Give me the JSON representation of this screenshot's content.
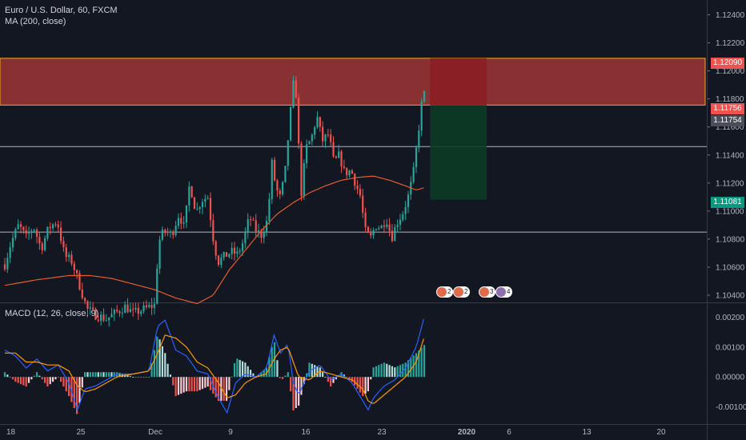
{
  "header": {
    "symbol": "Euro / U.S. Dollar, 60, FXCM",
    "ma_label": "MA (200, close)",
    "macd_label": "MACD (12, 26, close, 9)"
  },
  "price_tags": {
    "zone_top": "1.12090",
    "last_close": "1.11756",
    "crosshair": "1.11754",
    "target": "1.11081"
  },
  "events": [
    {
      "label": "2",
      "color": "#e06a4a"
    },
    {
      "label": "2",
      "color": "#e06a4a"
    },
    {
      "label": "3",
      "color": "#e06a4a"
    },
    {
      "label": "3",
      "color": "#8d6fb2"
    },
    {
      "label": "1",
      "color": "#8d6fb2"
    },
    {
      "label": "4",
      "color": "#8d6fb2"
    }
  ],
  "colors": {
    "background": "#131722",
    "up": "#26a69a",
    "down": "#ef5350",
    "ma": "#e65c2e",
    "macd": "#2962ff",
    "signal": "#ff9800",
    "zone": "#b23a3a",
    "zone_border": "#f5a623",
    "stop": "#8b1d24",
    "profit": "#0c3b26",
    "line": "#b2b5be"
  },
  "chart_data": [
    {
      "type": "candlestick",
      "title": "Euro / U.S. Dollar, 60, FXCM",
      "x_tick_labels": [
        "18",
        "25",
        "Dec",
        "9",
        "16",
        "23",
        "2020",
        "6",
        "13",
        "20"
      ],
      "y_tick_labels": [
        "1.12400",
        "1.12200",
        "1.12000",
        "1.11800",
        "1.11600",
        "1.11400",
        "1.11200",
        "1.11000",
        "1.10800",
        "1.10600",
        "1.10400"
      ],
      "ylim": [
        1.1036,
        1.1246
      ],
      "grid": false,
      "indicator": "MA (200, close)",
      "close_path": [
        {
          "d": 0.0,
          "c": 1.1062
        },
        {
          "d": 0.6,
          "c": 1.1078
        },
        {
          "d": 1.3,
          "c": 1.109
        },
        {
          "d": 2.0,
          "c": 1.1081
        },
        {
          "d": 2.7,
          "c": 1.1089
        },
        {
          "d": 3.4,
          "c": 1.1073
        },
        {
          "d": 4.1,
          "c": 1.1088
        },
        {
          "d": 4.9,
          "c": 1.1093
        },
        {
          "d": 5.6,
          "c": 1.1068
        },
        {
          "d": 6.3,
          "c": 1.1064
        },
        {
          "d": 7.0,
          "c": 1.1047
        },
        {
          "d": 7.7,
          "c": 1.103
        },
        {
          "d": 8.5,
          "c": 1.1026
        },
        {
          "d": 9.5,
          "c": 1.1023
        },
        {
          "d": 10.5,
          "c": 1.1028
        },
        {
          "d": 11.3,
          "c": 1.1032
        },
        {
          "d": 12.0,
          "c": 1.1027
        },
        {
          "d": 13.0,
          "c": 1.103
        },
        {
          "d": 14.0,
          "c": 1.1033
        },
        {
          "d": 14.4,
          "c": 1.1078
        },
        {
          "d": 14.9,
          "c": 1.1086
        },
        {
          "d": 15.6,
          "c": 1.1083
        },
        {
          "d": 16.3,
          "c": 1.1098
        },
        {
          "d": 16.8,
          "c": 1.1088
        },
        {
          "d": 17.3,
          "c": 1.112
        },
        {
          "d": 17.9,
          "c": 1.1099
        },
        {
          "d": 18.4,
          "c": 1.1108
        },
        {
          "d": 19.0,
          "c": 1.111
        },
        {
          "d": 19.6,
          "c": 1.1075
        },
        {
          "d": 20.0,
          "c": 1.1064
        },
        {
          "d": 20.6,
          "c": 1.1068
        },
        {
          "d": 21.2,
          "c": 1.1071
        },
        {
          "d": 21.8,
          "c": 1.1069
        },
        {
          "d": 22.3,
          "c": 1.1078
        },
        {
          "d": 22.9,
          "c": 1.1096
        },
        {
          "d": 23.5,
          "c": 1.1086
        },
        {
          "d": 24.0,
          "c": 1.1083
        },
        {
          "d": 24.6,
          "c": 1.1094
        },
        {
          "d": 25.0,
          "c": 1.1134
        },
        {
          "d": 25.3,
          "c": 1.112
        },
        {
          "d": 25.7,
          "c": 1.1108
        },
        {
          "d": 26.2,
          "c": 1.1125
        },
        {
          "d": 26.6,
          "c": 1.116
        },
        {
          "d": 27.0,
          "c": 1.119
        },
        {
          "d": 27.3,
          "c": 1.1182
        },
        {
          "d": 27.7,
          "c": 1.111
        },
        {
          "d": 28.2,
          "c": 1.1145
        },
        {
          "d": 28.7,
          "c": 1.1152
        },
        {
          "d": 29.2,
          "c": 1.1168
        },
        {
          "d": 29.7,
          "c": 1.115
        },
        {
          "d": 30.3,
          "c": 1.1155
        },
        {
          "d": 30.8,
          "c": 1.1134
        },
        {
          "d": 31.3,
          "c": 1.114
        },
        {
          "d": 31.8,
          "c": 1.1127
        },
        {
          "d": 32.4,
          "c": 1.1129
        },
        {
          "d": 32.9,
          "c": 1.1118
        },
        {
          "d": 33.3,
          "c": 1.111
        },
        {
          "d": 33.7,
          "c": 1.1086
        },
        {
          "d": 34.2,
          "c": 1.108
        },
        {
          "d": 34.7,
          "c": 1.109
        },
        {
          "d": 35.2,
          "c": 1.1088
        },
        {
          "d": 35.7,
          "c": 1.1095
        },
        {
          "d": 36.2,
          "c": 1.1081
        },
        {
          "d": 36.7,
          "c": 1.1092
        },
        {
          "d": 37.2,
          "c": 1.1098
        },
        {
          "d": 37.7,
          "c": 1.1109
        },
        {
          "d": 38.2,
          "c": 1.1125
        },
        {
          "d": 38.6,
          "c": 1.115
        },
        {
          "d": 39.0,
          "c": 1.1176
        },
        {
          "d": 39.2,
          "c": 1.1186
        },
        {
          "d": 39.4,
          "c": 1.1176
        }
      ],
      "ma_path": [
        {
          "d": 0.0,
          "c": 1.1047
        },
        {
          "d": 3.0,
          "c": 1.1051
        },
        {
          "d": 6.0,
          "c": 1.1054
        },
        {
          "d": 8.0,
          "c": 1.1054
        },
        {
          "d": 10.0,
          "c": 1.1052
        },
        {
          "d": 12.0,
          "c": 1.1048
        },
        {
          "d": 14.0,
          "c": 1.1044
        },
        {
          "d": 16.0,
          "c": 1.1038
        },
        {
          "d": 18.0,
          "c": 1.1034
        },
        {
          "d": 19.5,
          "c": 1.104
        },
        {
          "d": 21.0,
          "c": 1.1058
        },
        {
          "d": 22.5,
          "c": 1.1072
        },
        {
          "d": 24.0,
          "c": 1.1086
        },
        {
          "d": 25.5,
          "c": 1.1098
        },
        {
          "d": 27.0,
          "c": 1.1106
        },
        {
          "d": 28.5,
          "c": 1.1113
        },
        {
          "d": 30.0,
          "c": 1.1118
        },
        {
          "d": 31.5,
          "c": 1.1122
        },
        {
          "d": 33.0,
          "c": 1.1124
        },
        {
          "d": 34.5,
          "c": 1.1125
        },
        {
          "d": 36.0,
          "c": 1.1122
        },
        {
          "d": 37.5,
          "c": 1.1118
        },
        {
          "d": 38.5,
          "c": 1.1115
        },
        {
          "d": 39.4,
          "c": 1.1117
        }
      ],
      "levels": [
        {
          "name": "supply-zone",
          "from": 1.11756,
          "to": 1.1209
        },
        {
          "name": "support-line-upper",
          "value": 1.1146
        },
        {
          "name": "support-line-lower",
          "value": 1.1085
        }
      ],
      "position": {
        "entry": 1.11756,
        "stop": 1.1209,
        "target": 1.11081,
        "start_day": 39.8,
        "end_day": 45.1
      }
    },
    {
      "type": "macd",
      "title": "MACD (12, 26, close, 9)",
      "y_tick_labels": [
        "0.00200",
        "0.00100",
        "0.00000",
        "-0.00100"
      ],
      "ylim": [
        -0.00152,
        0.00244
      ],
      "macd_path": [
        {
          "d": 0.0,
          "v": 0.0009
        },
        {
          "d": 1.0,
          "v": 0.0007
        },
        {
          "d": 2.0,
          "v": 0.0003
        },
        {
          "d": 3.0,
          "v": 0.0006
        },
        {
          "d": 4.0,
          "v": 0.0002
        },
        {
          "d": 5.0,
          "v": 0.0004
        },
        {
          "d": 6.0,
          "v": -0.0002
        },
        {
          "d": 6.8,
          "v": -0.0011
        },
        {
          "d": 7.5,
          "v": -0.0004
        },
        {
          "d": 8.5,
          "v": -0.0003
        },
        {
          "d": 9.5,
          "v": -0.0001
        },
        {
          "d": 10.5,
          "v": 0.0001
        },
        {
          "d": 12.0,
          "v": 0.0001
        },
        {
          "d": 13.5,
          "v": 0.0002
        },
        {
          "d": 14.3,
          "v": 0.0017
        },
        {
          "d": 15.0,
          "v": 0.0019
        },
        {
          "d": 16.0,
          "v": 0.0009
        },
        {
          "d": 17.0,
          "v": 0.0007
        },
        {
          "d": 18.0,
          "v": 0.0002
        },
        {
          "d": 19.0,
          "v": 0.0001
        },
        {
          "d": 20.0,
          "v": -0.0007
        },
        {
          "d": 20.8,
          "v": -0.0012
        },
        {
          "d": 21.6,
          "v": -0.0002
        },
        {
          "d": 22.5,
          "v": 0.0001
        },
        {
          "d": 23.5,
          "v": 0.0
        },
        {
          "d": 24.5,
          "v": 0.0003
        },
        {
          "d": 25.2,
          "v": 0.0014
        },
        {
          "d": 25.8,
          "v": 0.0008
        },
        {
          "d": 26.5,
          "v": 0.0011
        },
        {
          "d": 27.0,
          "v": -0.0002
        },
        {
          "d": 27.5,
          "v": -0.0006
        },
        {
          "d": 28.5,
          "v": 0.0002
        },
        {
          "d": 29.5,
          "v": 0.0004
        },
        {
          "d": 30.5,
          "v": -0.0001
        },
        {
          "d": 31.5,
          "v": 0.0001
        },
        {
          "d": 32.5,
          "v": -0.0002
        },
        {
          "d": 33.5,
          "v": -0.0008
        },
        {
          "d": 34.0,
          "v": -0.0011
        },
        {
          "d": 34.5,
          "v": -0.0007
        },
        {
          "d": 35.5,
          "v": -0.0003
        },
        {
          "d": 36.5,
          "v": -0.0001
        },
        {
          "d": 37.5,
          "v": 0.0003
        },
        {
          "d": 38.5,
          "v": 0.001
        },
        {
          "d": 39.4,
          "v": 0.0022
        }
      ],
      "signal_path": [
        {
          "d": 0.0,
          "v": 0.0008
        },
        {
          "d": 1.0,
          "v": 0.0008
        },
        {
          "d": 2.0,
          "v": 0.0005
        },
        {
          "d": 3.0,
          "v": 0.0005
        },
        {
          "d": 4.0,
          "v": 0.0004
        },
        {
          "d": 5.0,
          "v": 0.0004
        },
        {
          "d": 6.0,
          "v": 0.0002
        },
        {
          "d": 6.8,
          "v": -0.0003
        },
        {
          "d": 7.5,
          "v": -0.0005
        },
        {
          "d": 8.5,
          "v": -0.0004
        },
        {
          "d": 9.5,
          "v": -0.0002
        },
        {
          "d": 10.5,
          "v": 0.0
        },
        {
          "d": 12.0,
          "v": 0.0001
        },
        {
          "d": 13.5,
          "v": 0.0002
        },
        {
          "d": 14.3,
          "v": 0.0008
        },
        {
          "d": 15.0,
          "v": 0.0014
        },
        {
          "d": 16.0,
          "v": 0.0013
        },
        {
          "d": 17.0,
          "v": 0.001
        },
        {
          "d": 18.0,
          "v": 0.0005
        },
        {
          "d": 19.0,
          "v": 0.0003
        },
        {
          "d": 20.0,
          "v": -0.0002
        },
        {
          "d": 20.8,
          "v": -0.0007
        },
        {
          "d": 21.6,
          "v": -0.0006
        },
        {
          "d": 22.5,
          "v": -0.0002
        },
        {
          "d": 23.5,
          "v": 0.0
        },
        {
          "d": 24.5,
          "v": 0.0001
        },
        {
          "d": 25.2,
          "v": 0.0006
        },
        {
          "d": 25.8,
          "v": 0.0009
        },
        {
          "d": 26.5,
          "v": 0.001
        },
        {
          "d": 27.0,
          "v": 0.0005
        },
        {
          "d": 27.5,
          "v": 0.0
        },
        {
          "d": 28.5,
          "v": -0.0001
        },
        {
          "d": 29.5,
          "v": 0.0002
        },
        {
          "d": 30.5,
          "v": 0.0001
        },
        {
          "d": 31.5,
          "v": 0.0
        },
        {
          "d": 32.5,
          "v": -0.0001
        },
        {
          "d": 33.5,
          "v": -0.0004
        },
        {
          "d": 34.0,
          "v": -0.0008
        },
        {
          "d": 34.5,
          "v": -0.0009
        },
        {
          "d": 35.5,
          "v": -0.0006
        },
        {
          "d": 36.5,
          "v": -0.0003
        },
        {
          "d": 37.5,
          "v": 0.0
        },
        {
          "d": 38.5,
          "v": 0.0005
        },
        {
          "d": 39.4,
          "v": 0.0015
        }
      ]
    }
  ]
}
